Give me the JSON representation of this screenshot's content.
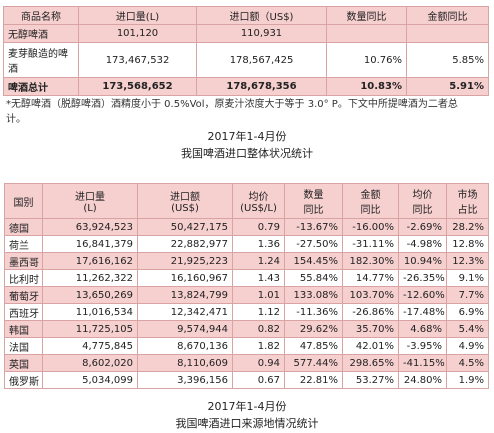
{
  "table1": {
    "header": [
      [
        "商品名称"
      ],
      [
        "进口量(L)"
      ],
      [
        "进口额（US$)"
      ],
      [
        "数量同比"
      ],
      [
        "金额同比"
      ]
    ],
    "rows": [
      [
        "无醇啤酒",
        "101,120",
        "110,931"
      ],
      [
        "麦芽酿造的啤酒",
        "173,467,532",
        "178,567,425",
        "10.76%",
        "5.85%"
      ],
      [
        "啤酒总计",
        "173,568,652",
        "178,678,356",
        "10.83%",
        "5.91%"
      ]
    ]
  },
  "footnote": "*无醇啤酒（脱醇啤酒）酒精度小于 0.5%Vol，原麦汁浓度大于等于 3.0° P。下文中所提啤酒为二者总计。",
  "caption1": [
    "2017年1-4月份",
    "我国啤酒进口整体状况统计"
  ],
  "table2": {
    "header": [
      [
        "国别"
      ],
      [
        "进口量",
        "(L)"
      ],
      [
        "进口额",
        "(US$)"
      ],
      [
        "均价",
        "(US$/L)"
      ],
      [
        "数量",
        "同比"
      ],
      [
        "金额",
        "同比"
      ],
      [
        "均价",
        "同比"
      ],
      [
        "市场",
        "占比"
      ]
    ],
    "rows": [
      [
        "德国",
        "63,924,523",
        "50,427,175",
        "0.79",
        "-13.67%",
        "-16.00%",
        "-2.69%",
        "28.2%"
      ],
      [
        "荷兰",
        "16,841,379",
        "22,882,977",
        "1.36",
        "-27.50%",
        "-31.11%",
        "-4.98%",
        "12.8%"
      ],
      [
        "墨西哥",
        "17,616,162",
        "21,925,223",
        "1.24",
        "154.45%",
        "182.30%",
        "10.94%",
        "12.3%"
      ],
      [
        "比利时",
        "11,262,322",
        "16,160,967",
        "1.43",
        "55.84%",
        "14.77%",
        "-26.35%",
        "9.1%"
      ],
      [
        "葡萄牙",
        "13,650,269",
        "13,824,799",
        "1.01",
        "133.08%",
        "103.70%",
        "-12.60%",
        "7.7%"
      ],
      [
        "西班牙",
        "11,016,534",
        "12,342,471",
        "1.12",
        "-11.36%",
        "-26.86%",
        "-17.48%",
        "6.9%"
      ],
      [
        "韩国",
        "11,725,105",
        "9,574,944",
        "0.82",
        "29.62%",
        "35.70%",
        "4.68%",
        "5.4%"
      ],
      [
        "法国",
        "4,775,845",
        "8,670,136",
        "1.82",
        "47.85%",
        "42.01%",
        "-3.95%",
        "4.9%"
      ],
      [
        "英国",
        "8,602,020",
        "8,110,609",
        "0.94",
        "577.44%",
        "298.65%",
        "-41.15%",
        "4.5%"
      ],
      [
        "俄罗斯",
        "5,034,099",
        "3,396,156",
        "0.67",
        "22.81%",
        "53.27%",
        "24.80%",
        "1.9%"
      ]
    ]
  },
  "caption2": [
    "2017年1-4月份",
    "我国啤酒进口来源地情况统计"
  ]
}
